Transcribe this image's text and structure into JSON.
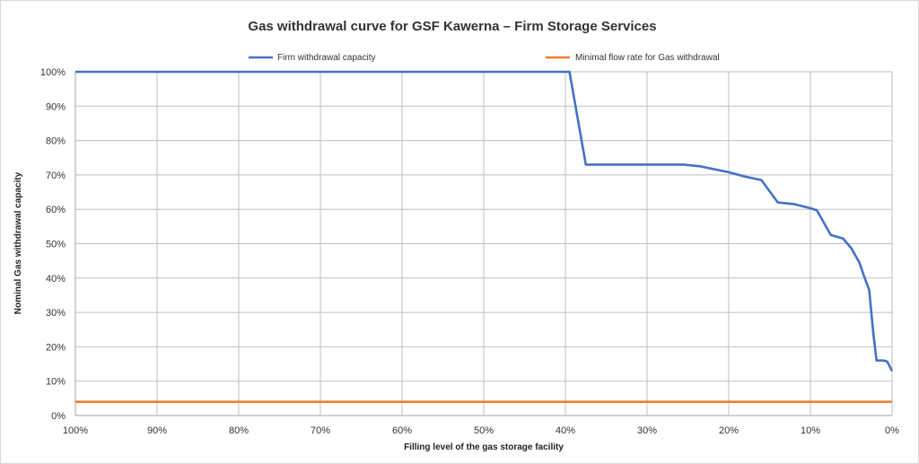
{
  "chart_data": {
    "type": "line",
    "title": "Gas withdrawal curve for GSF Kawerna  – Firm Storage Services",
    "xlabel": "Filling level of the gas storage facility",
    "ylabel": "Nominal Gas withdrawal capacity",
    "x_reversed": true,
    "xlim": [
      100,
      0
    ],
    "ylim": [
      0,
      100
    ],
    "x_ticks": [
      100,
      90,
      80,
      70,
      60,
      50,
      40,
      30,
      20,
      10,
      0
    ],
    "x_tick_labels": [
      "100%",
      "90%",
      "80%",
      "70%",
      "60%",
      "50%",
      "40%",
      "30%",
      "20%",
      "10%",
      "0%"
    ],
    "y_ticks": [
      0,
      10,
      20,
      30,
      40,
      50,
      60,
      70,
      80,
      90,
      100
    ],
    "y_tick_labels": [
      "0%",
      "10%",
      "20%",
      "30%",
      "40%",
      "50%",
      "60%",
      "70%",
      "80%",
      "90%",
      "100%"
    ],
    "grid": true,
    "legend_position": "top",
    "series": [
      {
        "name": "Firm withdrawal capacity",
        "color": "#4472c4",
        "points": [
          [
            100,
            100
          ],
          [
            40,
            100
          ],
          [
            39.5,
            100
          ],
          [
            37.5,
            73
          ],
          [
            35,
            73
          ],
          [
            30,
            73
          ],
          [
            25.5,
            73
          ],
          [
            23.5,
            72.5
          ],
          [
            20,
            70.8
          ],
          [
            18,
            69.5
          ],
          [
            16,
            68.5
          ],
          [
            14,
            62
          ],
          [
            12,
            61.5
          ],
          [
            10,
            60.3
          ],
          [
            9.2,
            59.7
          ],
          [
            7.5,
            52.5
          ],
          [
            6,
            51.5
          ],
          [
            5,
            48.7
          ],
          [
            4,
            44.5
          ],
          [
            3.5,
            41
          ],
          [
            2.8,
            36.5
          ],
          [
            2.3,
            24
          ],
          [
            1.9,
            16
          ],
          [
            1.0,
            16
          ],
          [
            0.6,
            15.7
          ],
          [
            0,
            13
          ]
        ]
      },
      {
        "name": "Minimal flow rate for Gas withdrawal",
        "color": "#ed7d31",
        "points": [
          [
            100,
            4
          ],
          [
            0,
            4
          ]
        ]
      }
    ]
  }
}
